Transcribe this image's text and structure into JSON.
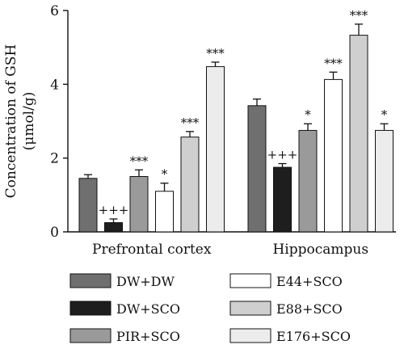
{
  "chart_data": {
    "type": "bar",
    "ylabel_line1": "Concentration of GSH",
    "ylabel_line2": "(μmol/g)",
    "ylim": [
      0,
      6
    ],
    "yticks": [
      "0",
      "2",
      "4",
      "6"
    ],
    "groups": [
      "Prefrontal cortex",
      "Hippocampus"
    ],
    "series": [
      {
        "name": "DW+DW",
        "color": "#6f6f6f",
        "values": [
          1.45,
          3.42
        ],
        "errors": [
          0.1,
          0.18
        ],
        "sig": [
          "",
          ""
        ]
      },
      {
        "name": "DW+SCO",
        "color": "#1e1e1e",
        "values": [
          0.25,
          1.75
        ],
        "errors": [
          0.1,
          0.1
        ],
        "sig": [
          "+++",
          "+++"
        ]
      },
      {
        "name": "PIR+SCO",
        "color": "#9a9a9a",
        "values": [
          1.5,
          2.75
        ],
        "errors": [
          0.18,
          0.18
        ],
        "sig": [
          "***",
          "*"
        ]
      },
      {
        "name": "E44+SCO",
        "color": "#ffffff",
        "values": [
          1.1,
          4.13
        ],
        "errors": [
          0.22,
          0.2
        ],
        "sig": [
          "*",
          "***"
        ]
      },
      {
        "name": "E88+SCO",
        "color": "#cfcfcf",
        "values": [
          2.57,
          5.33
        ],
        "errors": [
          0.15,
          0.3
        ],
        "sig": [
          "***",
          "***"
        ]
      },
      {
        "name": "E176+SCO",
        "color": "#ececec",
        "values": [
          4.48,
          2.75
        ],
        "errors": [
          0.12,
          0.18
        ],
        "sig": [
          "***",
          "*"
        ]
      }
    ]
  }
}
